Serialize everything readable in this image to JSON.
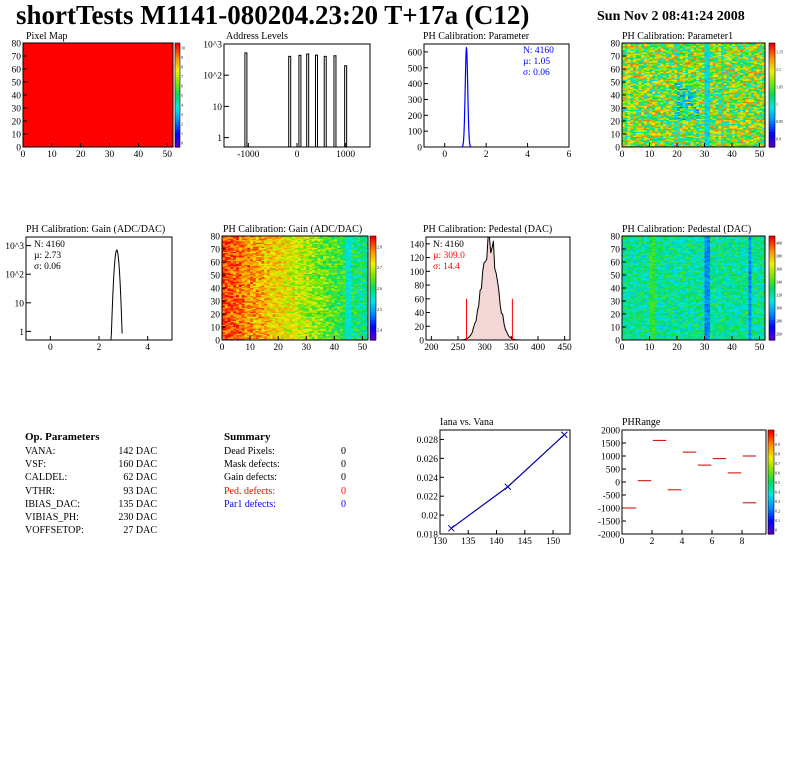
{
  "header": {
    "title": "shortTests M1141-080204.23:20 T+17a (C12)",
    "date": "Sun Nov  2 08:41:24 2008"
  },
  "colors": {
    "red": "#ff0000",
    "blue": "#0000ff",
    "hist_line": "#000000",
    "fit_line": "#0000aa"
  },
  "panels": {
    "pixel_map": {
      "title": "Pixel Map"
    },
    "address_levels": {
      "title": "Address Levels"
    },
    "phcal_param": {
      "title": "PH Calibration: Parameter",
      "stats": {
        "n": "N: 4160",
        "mu": "µ: 1.05",
        "sigma": "σ: 0.06"
      }
    },
    "phcal_param1": {
      "title": "PH Calibration: Parameter1"
    },
    "gain_hist": {
      "title": "PH Calibration: Gain (ADC/DAC)",
      "stats": {
        "n": "N: 4160",
        "mu": "µ: 2.73",
        "sigma": "σ: 0.06"
      }
    },
    "gain_map": {
      "title": "PH Calibration: Gain (ADC/DAC)"
    },
    "pedestal_hist": {
      "title": "PH Calibration: Pedestal (DAC)",
      "stats": {
        "n": "N: 4160",
        "mu": "µ: 309.0",
        "sigma": "σ: 14.4"
      }
    },
    "pedestal_map": {
      "title": "PH Calibration: Pedestal (DAC)"
    },
    "iana_vana": {
      "title": "Iana vs. Vana"
    },
    "phrange": {
      "title": "PHRange"
    }
  },
  "op_parameters": {
    "heading": "Op. Parameters",
    "rows": [
      {
        "name": "VANA:",
        "value": "142 DAC"
      },
      {
        "name": "VSF:",
        "value": "160 DAC"
      },
      {
        "name": "CALDEL:",
        "value": "62 DAC"
      },
      {
        "name": "VTHR:",
        "value": "93 DAC"
      },
      {
        "name": "IBIAS_DAC:",
        "value": "135 DAC"
      },
      {
        "name": "VIBIAS_PH:",
        "value": "230 DAC"
      },
      {
        "name": "VOFFSETOP:",
        "value": "27 DAC"
      }
    ]
  },
  "summary": {
    "heading": "Summary",
    "rows": [
      {
        "name": "Dead Pixels:",
        "value": "0",
        "color": "#000000"
      },
      {
        "name": "Mask defects:",
        "value": "0",
        "color": "#000000"
      },
      {
        "name": "Gain defects:",
        "value": "0",
        "color": "#000000"
      },
      {
        "name": "Ped. defects:",
        "value": "0",
        "color": "#ff0000"
      },
      {
        "name": "Par1 defects:",
        "value": "0",
        "color": "#0000ff"
      }
    ]
  },
  "chart_data": [
    {
      "id": "pixel_map",
      "type": "heatmap",
      "title": "Pixel Map",
      "xlim": [
        0,
        52
      ],
      "ylim": [
        0,
        80
      ],
      "x_ticks": [
        "0",
        "10",
        "20",
        "30",
        "40",
        "50"
      ],
      "y_ticks": [
        "0",
        "10",
        "20",
        "30",
        "40",
        "50",
        "60",
        "70",
        "80"
      ],
      "uniform_value": 10,
      "palette_ticks": [
        "0",
        "1",
        "2",
        "3",
        "4",
        "5",
        "6",
        "7",
        "8",
        "9",
        "10"
      ]
    },
    {
      "id": "address_levels",
      "type": "bar",
      "title": "Address Levels",
      "xlim": [
        -1500,
        1500
      ],
      "ylim_log": [
        0.5,
        1000
      ],
      "log_y": true,
      "x_ticks": [
        "-1000",
        "0",
        "1000"
      ],
      "y_ticks": [
        "1",
        "10",
        "10^2",
        "10^3"
      ],
      "peaks": [
        {
          "x": -1050,
          "height": 520
        },
        {
          "x": -150,
          "height": 400
        },
        {
          "x": 60,
          "height": 430
        },
        {
          "x": 220,
          "height": 480
        },
        {
          "x": 400,
          "height": 440
        },
        {
          "x": 580,
          "height": 400
        },
        {
          "x": 780,
          "height": 420
        },
        {
          "x": 1000,
          "height": 200
        }
      ]
    },
    {
      "id": "phcal_param",
      "type": "bar",
      "title": "PH Calibration: Parameter",
      "xlim": [
        -1,
        6
      ],
      "ylim": [
        0,
        650
      ],
      "x_ticks": [
        "0",
        "2",
        "4",
        "6"
      ],
      "y_ticks": [
        "0",
        "100",
        "200",
        "300",
        "400",
        "500",
        "600"
      ],
      "mean": 1.05,
      "sigma": 0.06,
      "peak": 630
    },
    {
      "id": "phcal_param1",
      "type": "heatmap",
      "title": "PH Calibration: Parameter1",
      "xlim": [
        0,
        52
      ],
      "ylim": [
        0,
        80
      ],
      "x_ticks": [
        "0",
        "10",
        "20",
        "30",
        "40",
        "50"
      ],
      "y_ticks": [
        "0",
        "10",
        "20",
        "30",
        "40",
        "50",
        "60",
        "70",
        "80"
      ],
      "palette_ticks": [
        "0.9",
        "0.95",
        "1",
        "1.05",
        "1.1",
        "1.15"
      ]
    },
    {
      "id": "gain_hist",
      "type": "bar",
      "title": "PH Calibration: Gain (ADC/DAC)",
      "xlim": [
        -1,
        5
      ],
      "ylim_log": [
        0.5,
        2000
      ],
      "log_y": true,
      "x_ticks": [
        "0",
        "2",
        "4"
      ],
      "y_ticks": [
        "1",
        "10",
        "10^2",
        "10^3"
      ],
      "mean": 2.73,
      "sigma": 0.06,
      "peak": 700
    },
    {
      "id": "gain_map",
      "type": "heatmap",
      "title": "PH Calibration: Gain (ADC/DAC)",
      "xlim": [
        0,
        52
      ],
      "ylim": [
        0,
        80
      ],
      "x_ticks": [
        "0",
        "10",
        "20",
        "30",
        "40",
        "50"
      ],
      "y_ticks": [
        "0",
        "10",
        "20",
        "30",
        "40",
        "50",
        "60",
        "70",
        "80"
      ],
      "palette_ticks": [
        "2.4",
        "2.5",
        "2.6",
        "2.7",
        "2.8"
      ]
    },
    {
      "id": "pedestal_hist",
      "type": "bar",
      "title": "PH Calibration: Pedestal (DAC)",
      "xlim": [
        190,
        460
      ],
      "ylim": [
        0,
        150
      ],
      "x_ticks": [
        "200",
        "250",
        "300",
        "350",
        "400",
        "450"
      ],
      "y_ticks": [
        "0",
        "20",
        "40",
        "60",
        "80",
        "100",
        "120",
        "140"
      ],
      "mean": 309.0,
      "sigma": 14.4,
      "peak": 145,
      "cut_lines": [
        266,
        352
      ],
      "cut_height": 60
    },
    {
      "id": "pedestal_map",
      "type": "heatmap",
      "title": "PH Calibration: Pedestal (DAC)",
      "xlim": [
        0,
        52
      ],
      "ylim": [
        0,
        80
      ],
      "x_ticks": [
        "0",
        "10",
        "20",
        "30",
        "40",
        "50"
      ],
      "y_ticks": [
        "0",
        "10",
        "20",
        "30",
        "40",
        "50",
        "60",
        "70",
        "80"
      ],
      "palette_ticks": [
        "260",
        "280",
        "300",
        "320",
        "340",
        "360",
        "380",
        "400"
      ]
    },
    {
      "id": "iana_vana",
      "type": "line",
      "title": "Iana vs. Vana",
      "xlim": [
        130,
        153
      ],
      "ylim": [
        0.018,
        0.029
      ],
      "x_ticks": [
        "130",
        "135",
        "140",
        "145",
        "150"
      ],
      "y_ticks": [
        "0.018",
        "0.02",
        "0.022",
        "0.024",
        "0.026",
        "0.028"
      ],
      "x": [
        132,
        142,
        152
      ],
      "y": [
        0.0186,
        0.023,
        0.0285
      ]
    },
    {
      "id": "phrange",
      "type": "scatter",
      "title": "PHRange",
      "xlim": [
        0,
        9.6
      ],
      "ylim": [
        -2000,
        2000
      ],
      "x_ticks": [
        "0",
        "2",
        "4",
        "6",
        "8"
      ],
      "y_ticks": [
        "-2000",
        "-1500",
        "-1000",
        "-500",
        "0",
        "500",
        "1000",
        "1500",
        "2000"
      ],
      "palette_ticks": [
        "0",
        "0.1",
        "0.2",
        "0.3",
        "0.4",
        "0.5",
        "0.6",
        "0.7",
        "0.8",
        "0.9",
        "1"
      ],
      "points": [
        {
          "x": 0.5,
          "y": -1000
        },
        {
          "x": 1.5,
          "y": 50
        },
        {
          "x": 2.5,
          "y": 1600
        },
        {
          "x": 3.5,
          "y": -300
        },
        {
          "x": 4.5,
          "y": 1150
        },
        {
          "x": 5.5,
          "y": 650
        },
        {
          "x": 6.5,
          "y": 900
        },
        {
          "x": 7.5,
          "y": 350
        },
        {
          "x": 8.5,
          "y": 1000
        },
        {
          "x": 8.5,
          "y": -800
        }
      ]
    }
  ]
}
